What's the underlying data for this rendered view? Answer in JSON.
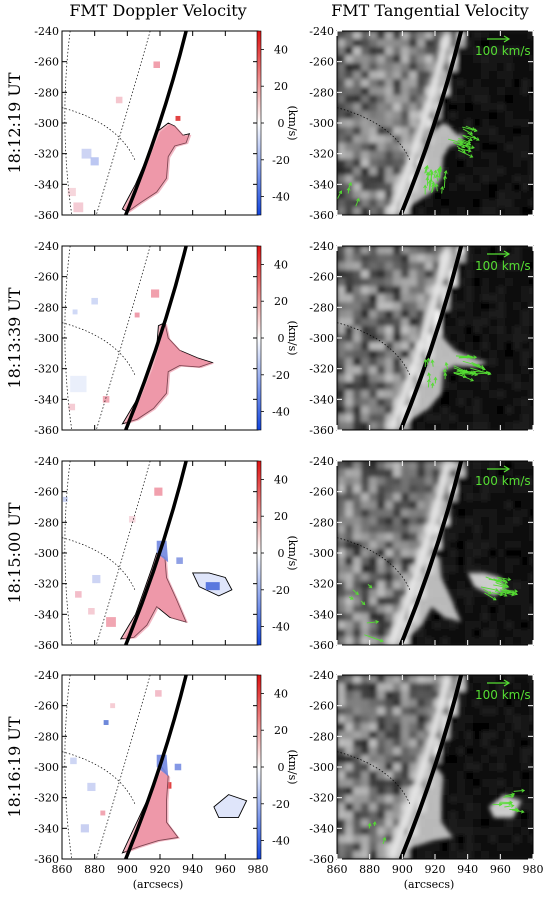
{
  "titles": {
    "left": "FMT Doppler Velocity",
    "right": "FMT Tangential Velocity"
  },
  "rows": [
    {
      "time": "18:12:19 UT"
    },
    {
      "time": "18:13:39 UT"
    },
    {
      "time": "18:15:00 UT"
    },
    {
      "time": "18:16:19 UT"
    }
  ],
  "colorbar": {
    "label": "(km/s)",
    "ticks": [
      40,
      20,
      0,
      -20,
      -40
    ],
    "range": [
      -50,
      50
    ],
    "colors": {
      "positive": "#dd2222",
      "zero": "#ffffff",
      "negative": "#2255cc"
    }
  },
  "axes": {
    "xlabel": "(arcsecs)",
    "xlim": [
      860,
      980
    ],
    "ylim": [
      -360,
      -240
    ],
    "xticks": [
      860,
      880,
      900,
      920,
      940,
      960,
      980
    ],
    "yticks": [
      -240,
      -260,
      -280,
      -300,
      -320,
      -340,
      -360
    ]
  },
  "scale_label": "100 km/s",
  "colors": {
    "vector": "#55dd33",
    "limb": "#000000"
  },
  "chart_data": [
    {
      "type": "heatmap",
      "title": "FMT Doppler Velocity",
      "panels": [
        "18:12:19 UT",
        "18:13:39 UT",
        "18:15:00 UT",
        "18:16:19 UT"
      ],
      "xlabel": "(arcsecs)",
      "ylabel": "",
      "xlim": [
        860,
        980
      ],
      "ylim": [
        -360,
        -240
      ],
      "colorbar_label": "(km/s)",
      "colorbar_range": [
        -50,
        50
      ]
    },
    {
      "type": "heatmap",
      "title": "FMT Tangential Velocity",
      "panels": [
        "18:12:19 UT",
        "18:13:39 UT",
        "18:15:00 UT",
        "18:16:19 UT"
      ],
      "xlabel": "(arcsecs)",
      "ylabel": "",
      "xlim": [
        860,
        980
      ],
      "ylim": [
        -360,
        -240
      ],
      "vector_scale": "100 km/s"
    }
  ]
}
